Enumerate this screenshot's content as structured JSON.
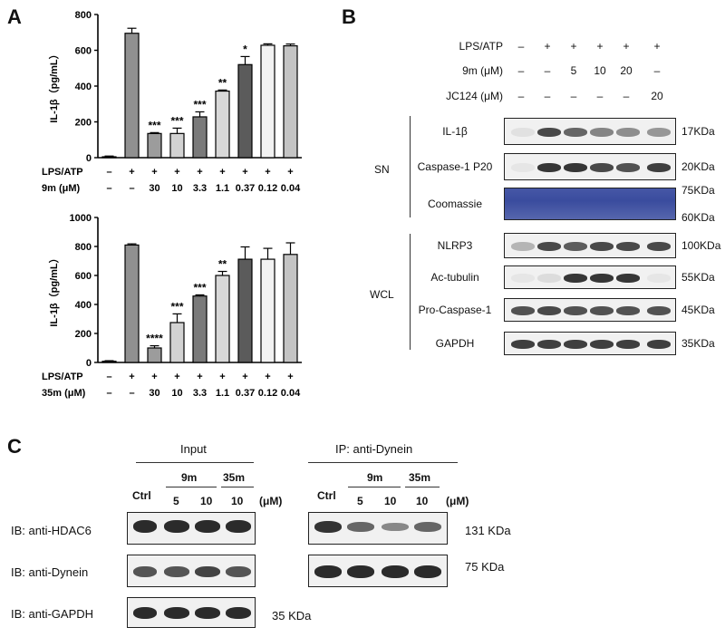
{
  "panels": {
    "a": "A",
    "b": "B",
    "c": "C"
  },
  "stats_ylabel": "IL-1β（pg/mL）",
  "chart_data": [
    {
      "type": "bar",
      "ylabel": "IL-1β（pg/mL）",
      "ylim": [
        0,
        800
      ],
      "yticks": [
        0,
        200,
        400,
        600,
        800
      ],
      "row_labels": [
        "LPS/ATP",
        "9m (μM)"
      ],
      "lps_row": [
        "–",
        "+",
        "+",
        "+",
        "+",
        "+",
        "+",
        "+",
        "+"
      ],
      "dose_row": [
        "–",
        "–",
        "30",
        "10",
        "3.3",
        "1.1",
        "0.37",
        "0.12",
        "0.04"
      ],
      "values": [
        5,
        695,
        135,
        135,
        228,
        372,
        520,
        628,
        625
      ],
      "errors": [
        4,
        28,
        5,
        30,
        28,
        6,
        45,
        8,
        10
      ],
      "significance": [
        "",
        "",
        "***",
        "***",
        "***",
        "**",
        "*",
        "",
        ""
      ],
      "colors": [
        "#909090",
        "#909090",
        "#9c9c9c",
        "#d2d2d2",
        "#7a7a7a",
        "#d8d8d8",
        "#5b5b5b",
        "#f2f2f2",
        "#c4c4c4"
      ]
    },
    {
      "type": "bar",
      "ylabel": "IL-1β（pg/mL）",
      "ylim": [
        0,
        1000
      ],
      "yticks": [
        0,
        200,
        400,
        600,
        800,
        1000
      ],
      "row_labels": [
        "LPS/ATP",
        "35m (μM)"
      ],
      "lps_row": [
        "–",
        "+",
        "+",
        "+",
        "+",
        "+",
        "+",
        "+",
        "+"
      ],
      "dose_row": [
        "–",
        "–",
        "30",
        "10",
        "3.3",
        "1.1",
        "0.37",
        "0.12",
        "0.04"
      ],
      "values": [
        8,
        810,
        100,
        275,
        458,
        600,
        712,
        712,
        745
      ],
      "errors": [
        4,
        8,
        15,
        60,
        8,
        28,
        85,
        75,
        80
      ],
      "significance": [
        "",
        "",
        "****",
        "***",
        "***",
        "**",
        "",
        "",
        ""
      ],
      "colors": [
        "#909090",
        "#909090",
        "#9c9c9c",
        "#d2d2d2",
        "#7a7a7a",
        "#d8d8d8",
        "#5b5b5b",
        "#f2f2f2",
        "#c4c4c4"
      ]
    }
  ],
  "panel_b": {
    "rows": [
      {
        "label": "LPS/ATP",
        "values": [
          "–",
          "+",
          "+",
          "+",
          "+",
          "+"
        ]
      },
      {
        "label": "9m (μM)",
        "values": [
          "–",
          "–",
          "5",
          "10",
          "20",
          "–"
        ]
      },
      {
        "label": "JC124 (μM)",
        "values": [
          "–",
          "–",
          "–",
          "–",
          "–",
          "20"
        ]
      }
    ],
    "groups": [
      "SN",
      "WCL"
    ],
    "blots": [
      {
        "label": "IL-1β",
        "kda": "17KDa"
      },
      {
        "label": "Caspase-1 P20",
        "kda": "20KDa"
      },
      {
        "label": "Coomassie",
        "kda": "75KDa",
        "kda2": "60KDa"
      },
      {
        "label": "NLRP3",
        "kda": "100KDa"
      },
      {
        "label": "Ac-tubulin",
        "kda": "55KDa"
      },
      {
        "label": "Pro-Caspase-1",
        "kda": "45KDa"
      },
      {
        "label": "GAPDH",
        "kda": "35KDa"
      }
    ]
  },
  "panel_c": {
    "input_title": "Input",
    "ip_title": "IP: anti-Dynein",
    "ctrl": "Ctrl",
    "cmpd_9m": "9m",
    "cmpd_35m": "35m",
    "doses": [
      "5",
      "10",
      "10"
    ],
    "unit": "(μM)",
    "rows": [
      {
        "label": "IB: anti-HDAC6",
        "kda": "131 KDa"
      },
      {
        "label": "IB: anti-Dynein",
        "kda": "75 KDa"
      },
      {
        "label": "IB: anti-GAPDH",
        "kda": "35 KDa"
      }
    ]
  }
}
